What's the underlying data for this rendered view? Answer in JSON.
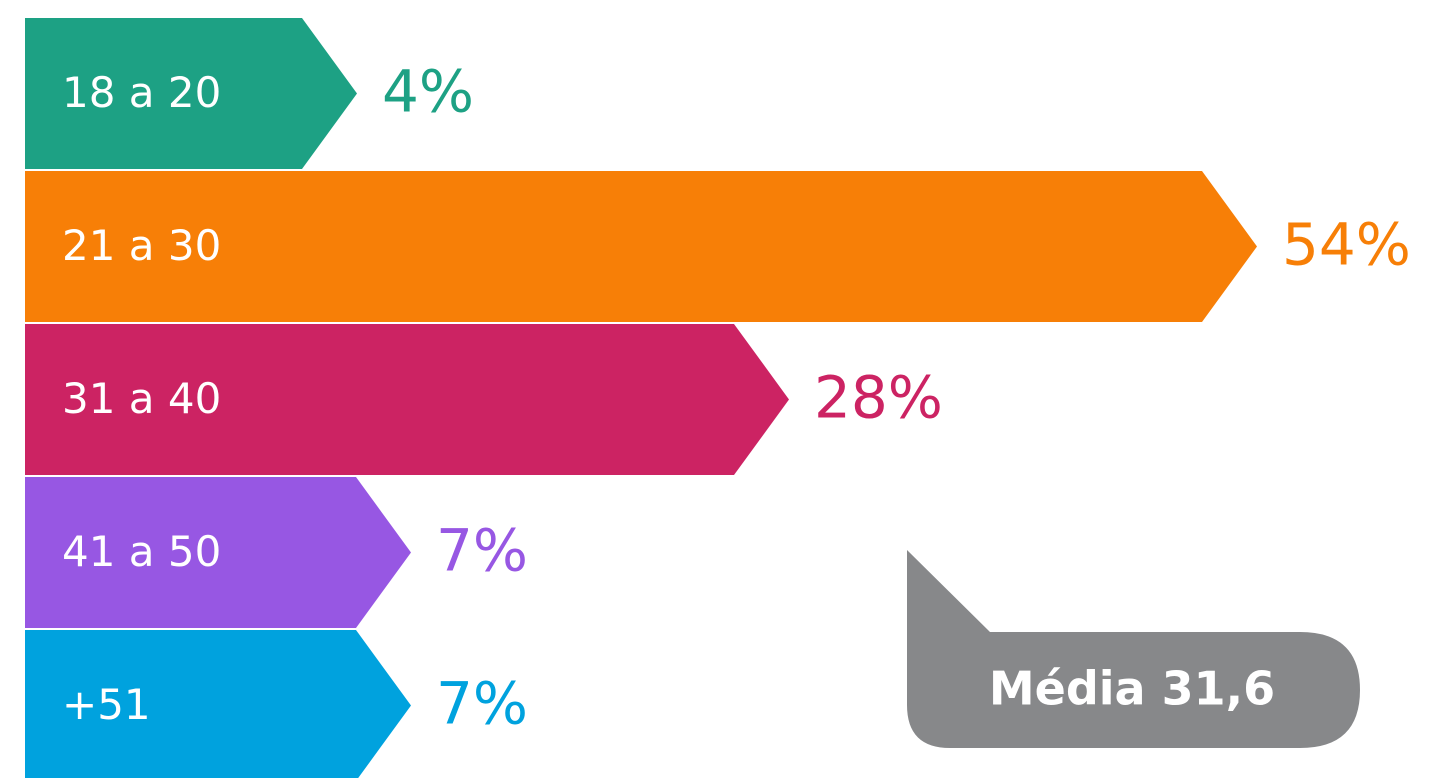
{
  "chart_data": {
    "type": "arrow-bar",
    "categories": [
      "18 a 20",
      "21 a 30",
      "31 a 40",
      "41 a 50",
      "+51"
    ],
    "values": [
      4,
      54,
      28,
      7,
      7
    ],
    "value_labels": [
      "4%",
      "54%",
      "28%",
      "7%",
      "7%"
    ],
    "colors": [
      "#1da184",
      "#f77f07",
      "#cc2363",
      "#9757e3",
      "#00a2de"
    ],
    "annotation": "Média 31,6"
  }
}
